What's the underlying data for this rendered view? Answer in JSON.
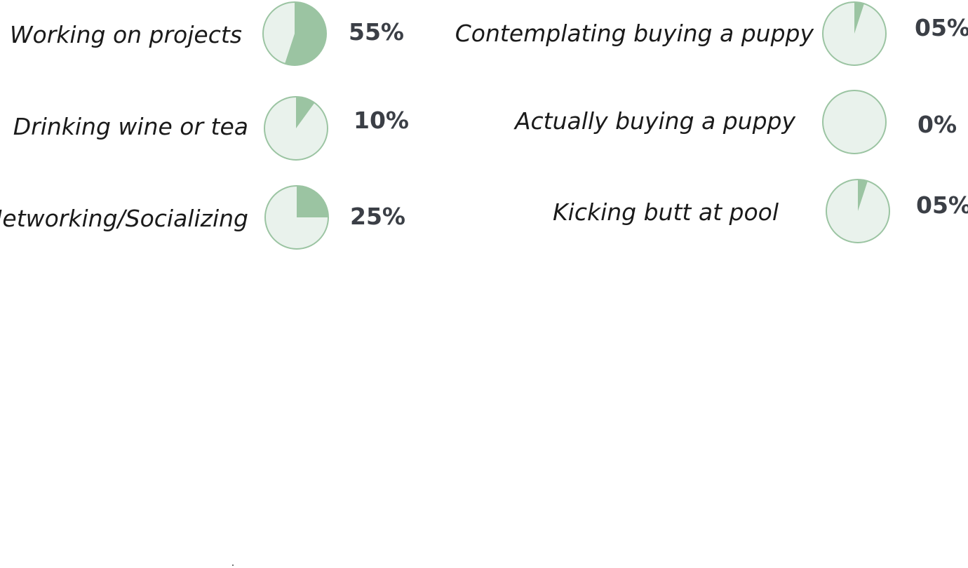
{
  "chart_data": {
    "type": "pie",
    "slices": [
      {
        "label": "Working on projects",
        "value": 55,
        "display": "55%"
      },
      {
        "label": "Drinking wine or tea",
        "value": 10,
        "display": "10%"
      },
      {
        "label": "Networking/Socializing",
        "value": 25,
        "display": "25%"
      },
      {
        "label": "Contemplating buying a puppy",
        "value": 5,
        "display": "05%"
      },
      {
        "label": "Actually buying a puppy",
        "value": 0,
        "display": "0%"
      },
      {
        "label": "Kicking butt at pool",
        "value": 5,
        "display": "05%"
      }
    ],
    "colors": {
      "filled": "#9bc4a2",
      "empty": "#e9f2ec",
      "outline": "#9bc4a2"
    }
  }
}
